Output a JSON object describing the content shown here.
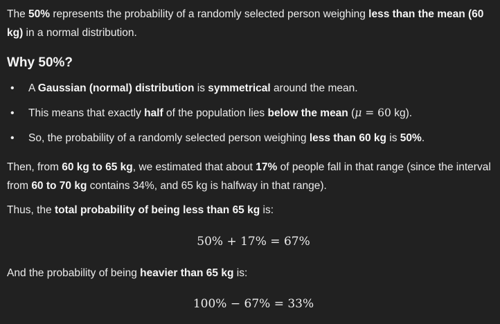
{
  "intro": {
    "t1": "The ",
    "b1": "50%",
    "t2": " represents the probability of a randomly selected person weighing ",
    "b2": "less than the mean (60 kg)",
    "t3": " in a normal distribution."
  },
  "why_heading": "Why 50%?",
  "bullets": [
    {
      "t1": "A ",
      "b1": "Gaussian (normal) distribution",
      "t2": " is ",
      "b2": "symmetrical",
      "t3": " around the mean."
    },
    {
      "t1": "This means that exactly ",
      "b1": "half",
      "t2": " of the population lies ",
      "b2": "below the mean",
      "t3": " (",
      "math": "μ = 60",
      "t4": " kg)."
    },
    {
      "t1": "So, the probability of a randomly selected person weighing ",
      "b1": "less than 60 kg",
      "t2": " is ",
      "b2": "50%",
      "t3": "."
    }
  ],
  "then_para": {
    "t1": "Then, from ",
    "b1": "60 kg to 65 kg",
    "t2": ", we estimated that about ",
    "b2": "17%",
    "t3": " of people fall in that range (since the interval from ",
    "b3": "60 to 70 kg",
    "t4": " contains 34%, and 65 kg is halfway in that range)."
  },
  "thus_para": {
    "t1": "Thus, the ",
    "b1": "total probability of being less than 65 kg",
    "t2": " is:"
  },
  "equation_1": "50% + 17% = 67%",
  "heavier_para": {
    "t1": "And the probability of being ",
    "b1": "heavier than 65 kg",
    "t2": " is:"
  },
  "equation_2": "100% − 67% = 33%"
}
